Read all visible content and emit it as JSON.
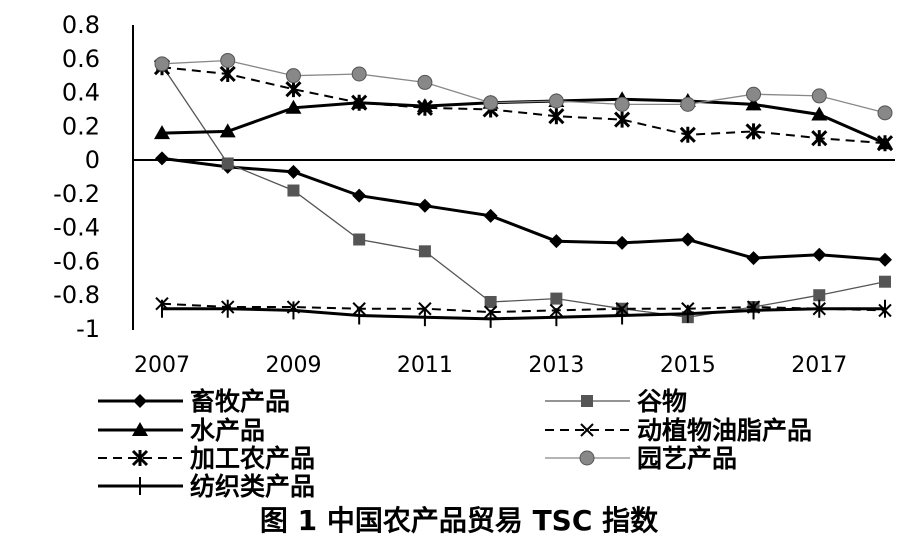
{
  "chart_data": {
    "type": "line",
    "caption": "图 1   中国农产品贸易 TSC 指数",
    "x": [
      2007,
      2008,
      2009,
      2010,
      2011,
      2012,
      2013,
      2014,
      2015,
      2016,
      2017,
      2018
    ],
    "x_tick_labels": [
      "2007",
      "2009",
      "2011",
      "2013",
      "2015",
      "2017"
    ],
    "y_tick_labels": [
      "0.8",
      "0.6",
      "0.4",
      "0.2",
      "0",
      "-0.2",
      "-0.4",
      "-0.6",
      "-0.8",
      "-1"
    ],
    "ylim": [
      -1,
      0.8
    ],
    "grid": false,
    "legend_position": "bottom",
    "series": [
      {
        "name": "畜牧产品",
        "color": "#000000",
        "marker": "diamond",
        "dash": "solid",
        "values": [
          0.01,
          -0.04,
          -0.07,
          -0.21,
          -0.27,
          -0.33,
          -0.48,
          -0.49,
          -0.47,
          -0.58,
          -0.56,
          -0.59
        ]
      },
      {
        "name": "谷物",
        "color": "#555555",
        "marker": "square",
        "dash": "solid-thin",
        "values": [
          0.56,
          -0.02,
          -0.18,
          -0.47,
          -0.54,
          -0.84,
          -0.82,
          -0.88,
          -0.93,
          -0.87,
          -0.8,
          -0.72
        ]
      },
      {
        "name": "水产品",
        "color": "#000000",
        "marker": "triangle",
        "dash": "solid",
        "values": [
          0.16,
          0.17,
          0.31,
          0.34,
          0.32,
          0.34,
          0.35,
          0.36,
          0.35,
          0.33,
          0.27,
          0.1
        ]
      },
      {
        "name": "动植物油脂产品",
        "color": "#000000",
        "marker": "x",
        "dash": "dashed",
        "values": [
          -0.85,
          -0.87,
          -0.87,
          -0.88,
          -0.88,
          -0.9,
          -0.89,
          -0.88,
          -0.88,
          -0.87,
          -0.88,
          -0.89
        ]
      },
      {
        "name": "加工农产品",
        "color": "#000000",
        "marker": "star",
        "dash": "dashed",
        "values": [
          0.55,
          0.51,
          0.42,
          0.34,
          0.31,
          0.3,
          0.26,
          0.24,
          0.15,
          0.17,
          0.13,
          0.1
        ]
      },
      {
        "name": "园艺产品",
        "color": "#888888",
        "marker": "circle",
        "dash": "solid-thin",
        "values": [
          0.57,
          0.59,
          0.5,
          0.51,
          0.46,
          0.34,
          0.35,
          0.33,
          0.33,
          0.39,
          0.38,
          0.28
        ]
      },
      {
        "name": "纺织类产品",
        "color": "#000000",
        "marker": "plus",
        "dash": "solid",
        "values": [
          -0.88,
          -0.88,
          -0.89,
          -0.92,
          -0.93,
          -0.94,
          -0.93,
          -0.92,
          -0.91,
          -0.89,
          -0.88,
          -0.88
        ]
      }
    ]
  }
}
